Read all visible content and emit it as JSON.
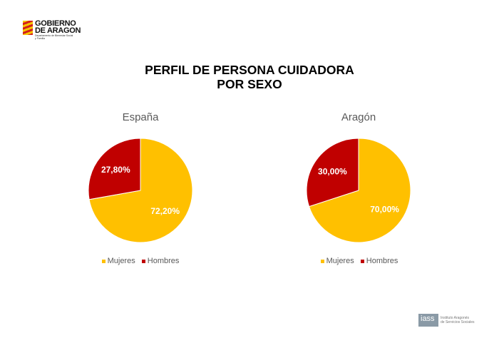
{
  "logo": {
    "line1": "GOBIERNO",
    "line2": "DE ARAGON",
    "sub1": "Departamento de Bienestar Social",
    "sub2": "y Familia"
  },
  "title": {
    "line1": "PERFIL DE PERSONA CUIDADORA",
    "line2": "POR SEXO"
  },
  "colors": {
    "Mujeres": "#FFC000",
    "Hombres": "#C00000"
  },
  "chart_data": [
    {
      "type": "pie",
      "title": "España",
      "categories": [
        "Mujeres",
        "Hombres"
      ],
      "values": [
        72.2,
        27.8
      ],
      "labels": [
        "72,20%",
        "27,80%"
      ],
      "legend": [
        "Mujeres",
        "Hombres"
      ],
      "legend_position": "bottom"
    },
    {
      "type": "pie",
      "title": "Aragón",
      "categories": [
        "Mujeres",
        "Hombres"
      ],
      "values": [
        70.0,
        30.0
      ],
      "labels": [
        "70,00%",
        "30,00%"
      ],
      "legend": [
        "Mujeres",
        "Hombres"
      ],
      "legend_position": "bottom"
    }
  ],
  "footer_logo": {
    "mark": "iass",
    "line1": "Instituto Aragonés",
    "line2": "de Servicios Sociales"
  }
}
